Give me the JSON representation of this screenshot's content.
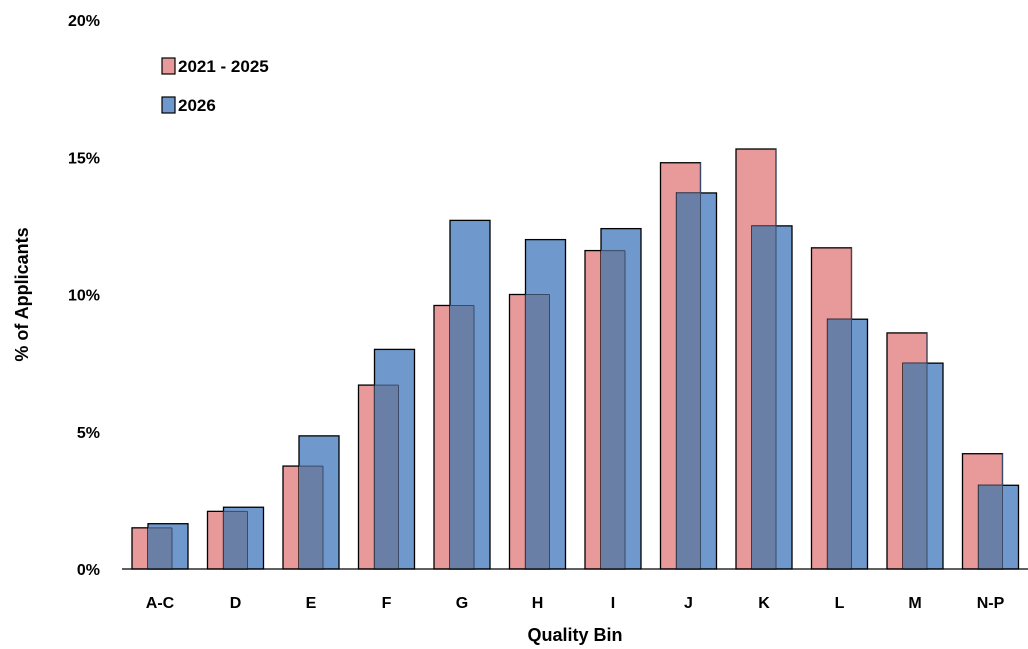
{
  "chart_data": {
    "type": "bar",
    "title": "",
    "xlabel": "Quality Bin",
    "ylabel": "% of Applicants",
    "categories": [
      "A-C",
      "D",
      "E",
      "F",
      "G",
      "H",
      "I",
      "J",
      "K",
      "L",
      "M",
      "N-P"
    ],
    "series": [
      {
        "name": "2021 - 2025",
        "color": "#E89A9A",
        "values": [
          1.5,
          2.1,
          3.75,
          6.7,
          9.6,
          10.0,
          11.6,
          14.8,
          15.3,
          11.7,
          8.6,
          4.2
        ]
      },
      {
        "name": "2026",
        "color": "#6F98CC",
        "values": [
          1.65,
          2.25,
          4.85,
          8.0,
          12.7,
          12.0,
          12.4,
          13.7,
          12.5,
          9.1,
          7.5,
          3.05
        ]
      }
    ],
    "overlap_color": "#6A7FA6",
    "ylim": [
      0,
      20
    ],
    "yticks": [
      0,
      5,
      10,
      15,
      20
    ],
    "ytick_labels": [
      "0%",
      "5%",
      "10%",
      "15%",
      "20%"
    ],
    "grid": false,
    "legend_position": "top-left"
  }
}
